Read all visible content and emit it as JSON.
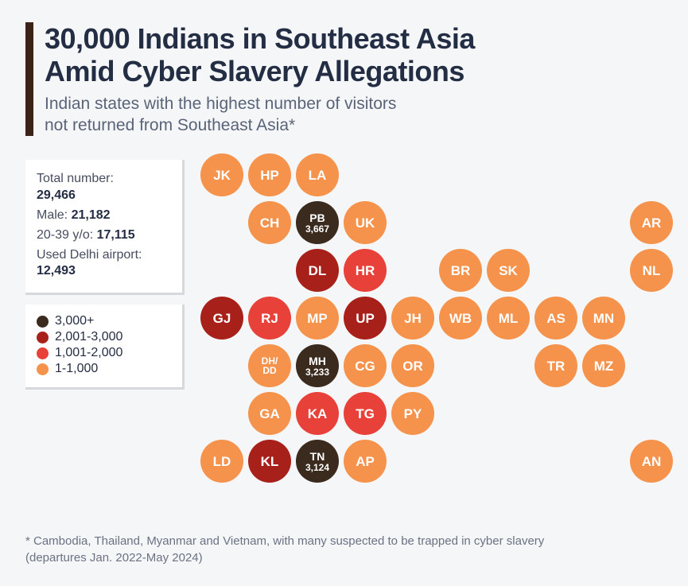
{
  "header": {
    "title_line1": "30,000 Indians in Southeast Asia",
    "title_line2": "Amid Cyber Slavery Allegations",
    "subtitle_line1": "Indian states with the highest number of visitors",
    "subtitle_line2": "not returned from Southeast Asia*"
  },
  "stats": {
    "total_label": "Total number:",
    "total_value": "29,466",
    "male_label": "Male:",
    "male_value": "21,182",
    "age_label": "20-39 y/o:",
    "age_value": "17,115",
    "airport_label": "Used Delhi airport:",
    "airport_value": "12,493"
  },
  "legend": {
    "items": [
      {
        "label": "3,000+",
        "color": "#3b2a1e"
      },
      {
        "label": "2,001-3,000",
        "color": "#a8201a"
      },
      {
        "label": "1,001-2,000",
        "color": "#e8413a"
      },
      {
        "label": "1-1,000",
        "color": "#f5924b"
      }
    ]
  },
  "colors": {
    "tier1": "#f5924b",
    "tier2": "#e8413a",
    "tier3": "#a8201a",
    "tier4": "#3b2a1e",
    "bg": "#f5f6f7",
    "box_bg": "#ffffff",
    "text_dark": "#232e44",
    "text_muted": "#5a6478"
  },
  "map": {
    "circle_diameter": 54,
    "col_spacing": 60,
    "row_spacing": 60,
    "states": [
      {
        "code": "JK",
        "col": 0,
        "row": 0,
        "tier": 1
      },
      {
        "code": "HP",
        "col": 1,
        "row": 0,
        "tier": 1
      },
      {
        "code": "LA",
        "col": 2,
        "row": 0,
        "tier": 1
      },
      {
        "code": "CH",
        "col": 1,
        "row": 1,
        "tier": 1
      },
      {
        "code": "PB",
        "col": 2,
        "row": 1,
        "tier": 4,
        "value": "3,667"
      },
      {
        "code": "UK",
        "col": 3,
        "row": 1,
        "tier": 1
      },
      {
        "code": "AR",
        "col": 9,
        "row": 1,
        "tier": 1
      },
      {
        "code": "DL",
        "col": 2,
        "row": 2,
        "tier": 3
      },
      {
        "code": "HR",
        "col": 3,
        "row": 2,
        "tier": 2
      },
      {
        "code": "BR",
        "col": 5,
        "row": 2,
        "tier": 1
      },
      {
        "code": "SK",
        "col": 6,
        "row": 2,
        "tier": 1
      },
      {
        "code": "NL",
        "col": 9,
        "row": 2,
        "tier": 1
      },
      {
        "code": "GJ",
        "col": 0,
        "row": 3,
        "tier": 3
      },
      {
        "code": "RJ",
        "col": 1,
        "row": 3,
        "tier": 2
      },
      {
        "code": "MP",
        "col": 2,
        "row": 3,
        "tier": 1
      },
      {
        "code": "UP",
        "col": 3,
        "row": 3,
        "tier": 3
      },
      {
        "code": "JH",
        "col": 4,
        "row": 3,
        "tier": 1
      },
      {
        "code": "WB",
        "col": 5,
        "row": 3,
        "tier": 1
      },
      {
        "code": "ML",
        "col": 6,
        "row": 3,
        "tier": 1
      },
      {
        "code": "AS",
        "col": 7,
        "row": 3,
        "tier": 1
      },
      {
        "code": "MN",
        "col": 8,
        "row": 3,
        "tier": 1
      },
      {
        "code": "DH/\nDD",
        "col": 1,
        "row": 4,
        "tier": 1,
        "small": true
      },
      {
        "code": "MH",
        "col": 2,
        "row": 4,
        "tier": 4,
        "value": "3,233"
      },
      {
        "code": "CG",
        "col": 3,
        "row": 4,
        "tier": 1
      },
      {
        "code": "OR",
        "col": 4,
        "row": 4,
        "tier": 1
      },
      {
        "code": "TR",
        "col": 7,
        "row": 4,
        "tier": 1
      },
      {
        "code": "MZ",
        "col": 8,
        "row": 4,
        "tier": 1
      },
      {
        "code": "GA",
        "col": 1,
        "row": 5,
        "tier": 1
      },
      {
        "code": "KA",
        "col": 2,
        "row": 5,
        "tier": 2
      },
      {
        "code": "TG",
        "col": 3,
        "row": 5,
        "tier": 2
      },
      {
        "code": "PY",
        "col": 4,
        "row": 5,
        "tier": 1
      },
      {
        "code": "LD",
        "col": 0,
        "row": 6,
        "tier": 1
      },
      {
        "code": "KL",
        "col": 1,
        "row": 6,
        "tier": 3
      },
      {
        "code": "TN",
        "col": 2,
        "row": 6,
        "tier": 4,
        "value": "3,124"
      },
      {
        "code": "AP",
        "col": 3,
        "row": 6,
        "tier": 1
      },
      {
        "code": "AN",
        "col": 9,
        "row": 6,
        "tier": 1
      }
    ]
  },
  "footnote": {
    "line1": "* Cambodia, Thailand, Myanmar and Vietnam, with many suspected to be trapped in cyber slavery",
    "line2": "(departures Jan. 2022-May 2024)"
  }
}
